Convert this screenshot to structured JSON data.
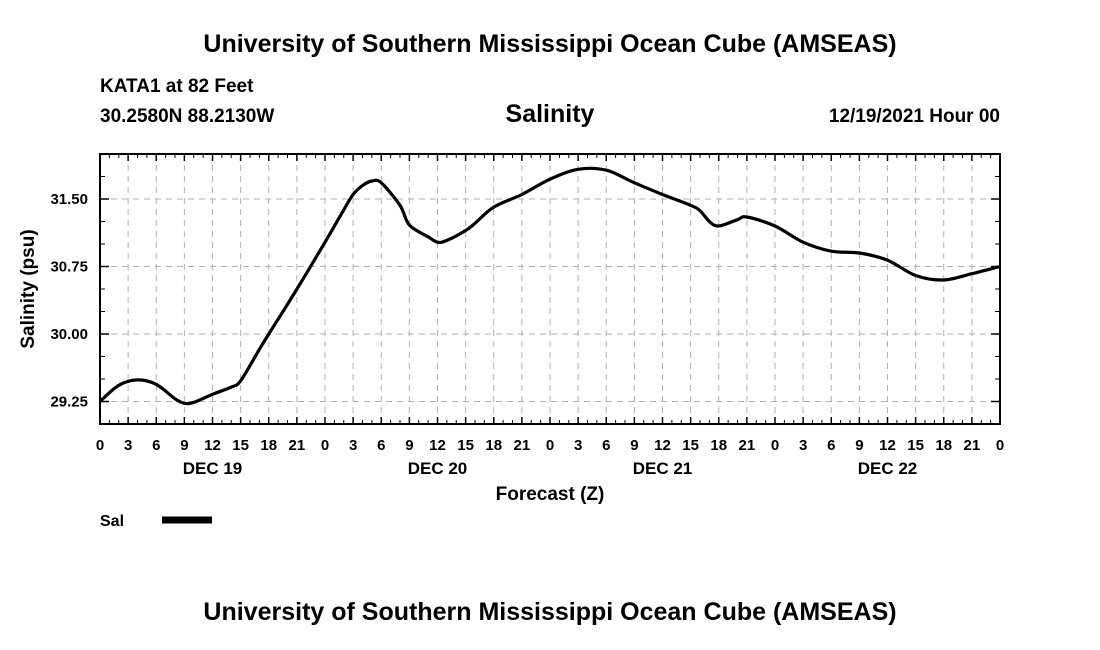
{
  "header": {
    "title": "University of Southern Mississippi Ocean Cube (AMSEAS)",
    "footer_title": "University of Southern Mississippi Ocean Cube (AMSEAS)",
    "station": "KATA1 at 82 Feet",
    "coords": "30.2580N  88.2130W",
    "date_stamp": "12/19/2021 Hour 00"
  },
  "chart_data": {
    "type": "line",
    "title": "Salinity",
    "xlabel": "Forecast (Z)",
    "ylabel": "Salinity (psu)",
    "ylim": [
      29.0,
      32.0
    ],
    "yticks": [
      29.25,
      30.0,
      30.75,
      31.5
    ],
    "ytick_labels": [
      "29.25",
      "30.00",
      "30.75",
      "31.50"
    ],
    "xlim": [
      0,
      96
    ],
    "xtick_labels": [
      "0",
      "3",
      "6",
      "9",
      "12",
      "15",
      "18",
      "21",
      "0",
      "3",
      "6",
      "9",
      "12",
      "15",
      "18",
      "21",
      "0",
      "3",
      "6",
      "9",
      "12",
      "15",
      "18",
      "21",
      "0",
      "3",
      "6",
      "9",
      "12",
      "15",
      "18",
      "21",
      "0"
    ],
    "day_labels": [
      {
        "hour": 12,
        "label": "DEC 19"
      },
      {
        "hour": 36,
        "label": "DEC 20"
      },
      {
        "hour": 60,
        "label": "DEC 21"
      },
      {
        "hour": 84,
        "label": "DEC 22"
      }
    ],
    "grid": true,
    "series": [
      {
        "name": "Sal",
        "color": "#000000",
        "x": [
          0,
          2,
          4,
          6,
          8,
          9,
          10,
          12,
          14,
          15,
          17,
          18,
          20,
          22,
          24,
          26,
          27,
          28,
          29,
          30,
          32,
          33,
          35,
          36,
          37,
          39,
          40,
          42,
          45,
          48,
          51,
          54,
          57,
          60,
          63,
          64,
          65,
          66,
          68,
          69,
          72,
          75,
          78,
          81,
          84,
          87,
          90,
          93,
          96
        ],
        "y": [
          29.25,
          29.43,
          29.49,
          29.44,
          29.28,
          29.23,
          29.24,
          29.33,
          29.41,
          29.48,
          29.83,
          30.0,
          30.33,
          30.67,
          31.02,
          31.38,
          31.55,
          31.65,
          31.7,
          31.68,
          31.43,
          31.21,
          31.08,
          31.02,
          31.04,
          31.15,
          31.23,
          31.41,
          31.55,
          31.72,
          31.83,
          31.82,
          31.68,
          31.55,
          31.43,
          31.37,
          31.25,
          31.2,
          31.27,
          31.3,
          31.2,
          31.02,
          30.92,
          30.9,
          30.82,
          30.65,
          30.6,
          30.67,
          30.75
        ]
      }
    ],
    "legend": {
      "label": "Sal",
      "position": "bottom-left"
    }
  }
}
